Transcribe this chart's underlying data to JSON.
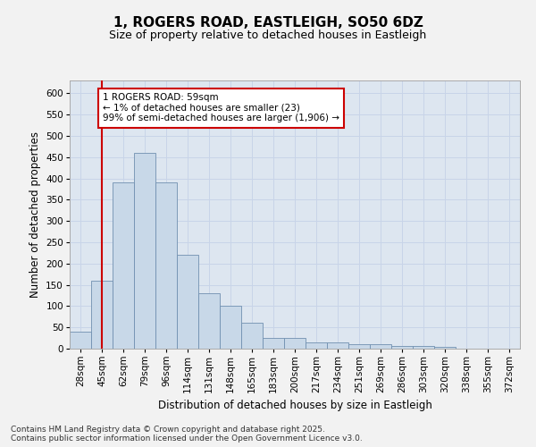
{
  "title_line1": "1, ROGERS ROAD, EASTLEIGH, SO50 6DZ",
  "title_line2": "Size of property relative to detached houses in Eastleigh",
  "xlabel": "Distribution of detached houses by size in Eastleigh",
  "ylabel": "Number of detached properties",
  "categories": [
    "28sqm",
    "45sqm",
    "62sqm",
    "79sqm",
    "96sqm",
    "114sqm",
    "131sqm",
    "148sqm",
    "165sqm",
    "183sqm",
    "200sqm",
    "217sqm",
    "234sqm",
    "251sqm",
    "269sqm",
    "286sqm",
    "303sqm",
    "320sqm",
    "338sqm",
    "355sqm",
    "372sqm"
  ],
  "values": [
    40,
    160,
    390,
    460,
    390,
    220,
    130,
    100,
    60,
    25,
    25,
    15,
    15,
    10,
    10,
    7,
    7,
    5,
    0,
    0,
    0
  ],
  "bar_color": "#c8d8e8",
  "bar_edge_color": "#7090b0",
  "grid_color": "#c8d4e8",
  "background_color": "#dde6f0",
  "fig_background": "#f2f2f2",
  "vline_x": 1,
  "vline_color": "#cc0000",
  "annotation_text": "1 ROGERS ROAD: 59sqm\n← 1% of detached houses are smaller (23)\n99% of semi-detached houses are larger (1,906) →",
  "annotation_box_color": "#ffffff",
  "annotation_box_edge_color": "#cc0000",
  "footnote": "Contains HM Land Registry data © Crown copyright and database right 2025.\nContains public sector information licensed under the Open Government Licence v3.0.",
  "ylim": [
    0,
    630
  ],
  "yticks": [
    0,
    50,
    100,
    150,
    200,
    250,
    300,
    350,
    400,
    450,
    500,
    550,
    600
  ],
  "title_fontsize": 11,
  "subtitle_fontsize": 9,
  "axis_label_fontsize": 8.5,
  "tick_fontsize": 7.5,
  "annotation_fontsize": 7.5,
  "footnote_fontsize": 6.5
}
